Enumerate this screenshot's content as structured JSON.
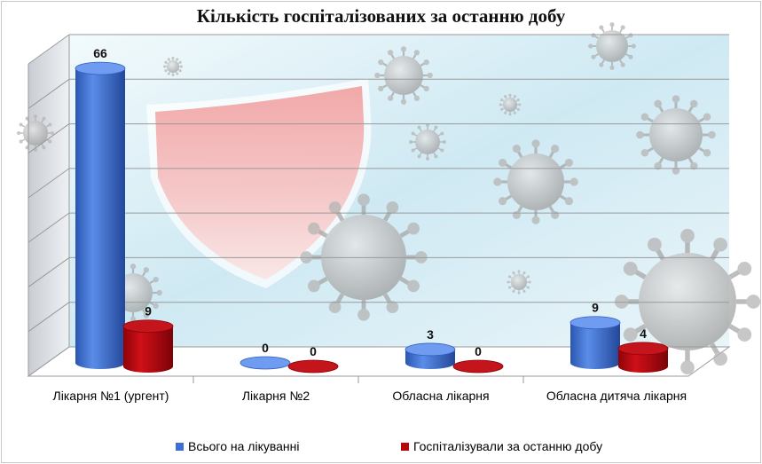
{
  "chart_data": {
    "type": "bar",
    "title": "Кількість госпіталізованих за останню добу",
    "categories": [
      "Лікарня №1 (ургент)",
      "Лікарня №2",
      "Обласна лікарня",
      "Обласна дитяча лікарня"
    ],
    "series": [
      {
        "name": "Всього на лікуванні",
        "values": [
          66,
          0,
          3,
          9
        ],
        "color": "#3e6fd0"
      },
      {
        "name": "Госпіталізували за останню добу",
        "values": [
          9,
          0,
          0,
          4
        ],
        "color": "#b8060d"
      }
    ],
    "ylim": [
      0,
      70
    ],
    "grid": true,
    "legend_position": "bottom",
    "data_labels": true
  },
  "colors": {
    "grid": "#9a9a9a",
    "wall": "#d8eef5"
  },
  "icons": [
    "shield-icon",
    "virus-icon"
  ]
}
